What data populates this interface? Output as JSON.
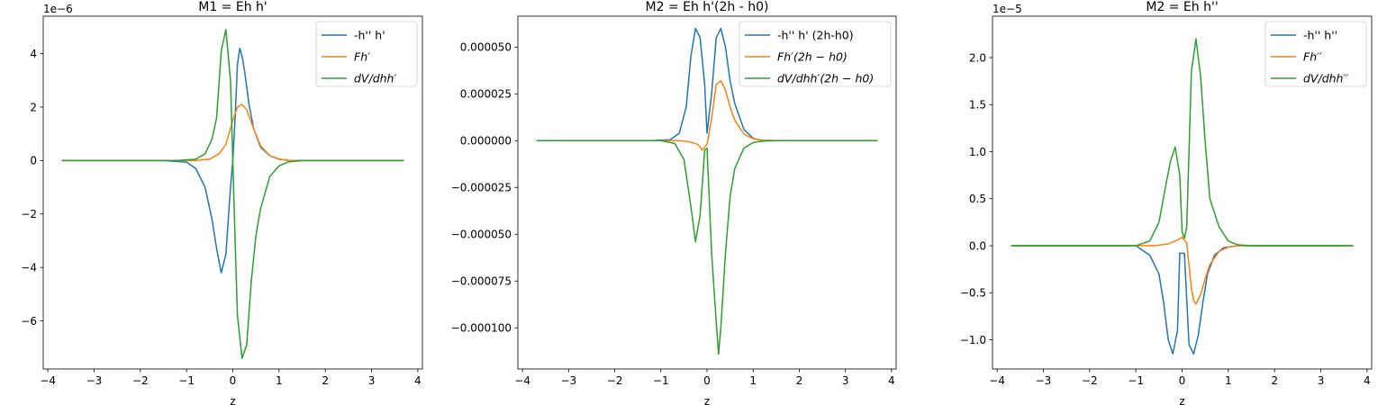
{
  "chart_data": [
    {
      "type": "line",
      "title": "M1 = Eh h'",
      "xlabel": "z",
      "ylabel": "",
      "scale_label": "1e−6",
      "xlim": [
        -4.1,
        4.1
      ],
      "ylim": [
        -7.8,
        5.4
      ],
      "xticks": [
        -4,
        -3,
        -2,
        -1,
        0,
        1,
        2,
        3,
        4
      ],
      "xtick_labels": [
        "−4",
        "−3",
        "−2",
        "−1",
        "0",
        "1",
        "2",
        "3",
        "4"
      ],
      "yticks": [
        -6,
        -4,
        -2,
        0,
        2,
        4
      ],
      "ytick_labels": [
        "−6",
        "−4",
        "−2",
        "0",
        "2",
        "4"
      ],
      "legend_position": "top-right",
      "series": [
        {
          "name": "-h'' h'",
          "italic": false,
          "color": "#1f77b4",
          "x": [
            -3.7,
            -1.5,
            -1.0,
            -0.8,
            -0.6,
            -0.45,
            -0.35,
            -0.25,
            -0.15,
            -0.05,
            0.0,
            0.05,
            0.1,
            0.15,
            0.2,
            0.25,
            0.35,
            0.45,
            0.6,
            0.8,
            1.0,
            1.2,
            1.5,
            3.7
          ],
          "y": [
            0,
            0,
            -0.06,
            -0.3,
            -1.0,
            -2.2,
            -3.3,
            -4.2,
            -3.5,
            -1.0,
            0.0,
            1.6,
            3.6,
            4.2,
            3.9,
            3.4,
            2.1,
            1.2,
            0.5,
            0.18,
            0.05,
            0.01,
            0,
            0
          ]
        },
        {
          "name": "Fh′",
          "italic": true,
          "color": "#ff7f0e",
          "x": [
            -3.7,
            -0.8,
            -0.5,
            -0.3,
            -0.15,
            0.0,
            0.1,
            0.2,
            0.3,
            0.45,
            0.6,
            0.8,
            1.0,
            1.2,
            1.5,
            3.7
          ],
          "y": [
            0,
            0,
            0.05,
            0.25,
            0.6,
            1.5,
            2.0,
            2.1,
            1.9,
            1.2,
            0.55,
            0.18,
            0.05,
            0.01,
            0,
            0
          ]
        },
        {
          "name": "dV/dhh′",
          "italic": true,
          "color": "#2ca02c",
          "x": [
            -3.7,
            -1.2,
            -0.8,
            -0.6,
            -0.45,
            -0.35,
            -0.25,
            -0.15,
            -0.05,
            0.0,
            0.05,
            0.1,
            0.2,
            0.3,
            0.4,
            0.5,
            0.6,
            0.8,
            1.0,
            1.2,
            1.5,
            3.7
          ],
          "y": [
            0,
            0,
            0.05,
            0.25,
            0.8,
            1.6,
            4.1,
            4.9,
            3.0,
            0.0,
            -3.0,
            -5.8,
            -7.4,
            -6.9,
            -4.5,
            -2.8,
            -1.8,
            -0.6,
            -0.2,
            -0.05,
            0,
            0
          ]
        }
      ]
    },
    {
      "type": "line",
      "title": "M2 = Eh h'(2h - h0)",
      "xlabel": "z",
      "ylabel": "",
      "scale_label": "",
      "xlim": [
        -4.1,
        4.1
      ],
      "ylim": [
        -0.000122,
        6.65e-05
      ],
      "xticks": [
        -4,
        -3,
        -2,
        -1,
        0,
        1,
        2,
        3,
        4
      ],
      "xtick_labels": [
        "−4",
        "−3",
        "−2",
        "−1",
        "0",
        "1",
        "2",
        "3",
        "4"
      ],
      "yticks": [
        -0.0001,
        -7.5e-05,
        -5e-05,
        -2.5e-05,
        0,
        2.5e-05,
        5e-05
      ],
      "ytick_labels": [
        "−0.000100",
        "−0.000075",
        "−0.000050",
        "−0.000025",
        "0.000000",
        "0.000025",
        "0.000050"
      ],
      "legend_position": "top-right",
      "series": [
        {
          "name": "-h'' h' (2h-h0)",
          "italic": false,
          "color": "#1f77b4",
          "x": [
            -3.7,
            -1.2,
            -0.8,
            -0.6,
            -0.45,
            -0.35,
            -0.25,
            -0.15,
            -0.05,
            0.0,
            0.1,
            0.2,
            0.3,
            0.4,
            0.5,
            0.6,
            0.8,
            1.0,
            1.2,
            1.5,
            3.7
          ],
          "y": [
            0,
            0,
            5e-07,
            4e-06,
            1.8e-05,
            4.5e-05,
            6e-05,
            5.5e-05,
            3e-05,
            4e-06,
            2.5e-05,
            5.5e-05,
            6e-05,
            5e-05,
            3.2e-05,
            2e-05,
            6e-06,
            1.2e-06,
            2e-07,
            0,
            0
          ]
        },
        {
          "name": "Fh′(2h − h0)",
          "italic": true,
          "color": "#ff7f0e",
          "x": [
            -3.7,
            -0.6,
            -0.4,
            -0.2,
            -0.1,
            0.0,
            0.1,
            0.2,
            0.3,
            0.4,
            0.5,
            0.6,
            0.8,
            1.0,
            1.2,
            1.5,
            3.7
          ],
          "y": [
            0,
            0,
            -5e-07,
            -2e-06,
            -5e-06,
            -2e-06,
            1.2e-05,
            3e-05,
            3.2e-05,
            2.7e-05,
            1.8e-05,
            1.1e-05,
            3.5e-06,
            1e-06,
            2e-07,
            0,
            0
          ]
        },
        {
          "name": "dV/dhh′(2h − h0)",
          "italic": true,
          "color": "#2ca02c",
          "x": [
            -3.7,
            -1.0,
            -0.7,
            -0.5,
            -0.35,
            -0.25,
            -0.15,
            -0.05,
            0.0,
            0.1,
            0.2,
            0.25,
            0.3,
            0.4,
            0.5,
            0.6,
            0.8,
            1.0,
            1.2,
            1.5,
            3.7
          ],
          "y": [
            0,
            0,
            -1.5e-06,
            -1e-05,
            -3.5e-05,
            -5.4e-05,
            -4e-05,
            -5e-06,
            -4e-06,
            -6e-05,
            -9.7e-05,
            -0.000114,
            -0.0001,
            -6e-05,
            -3e-05,
            -1.5e-05,
            -4e-06,
            -1e-06,
            -2e-07,
            0,
            0
          ]
        }
      ]
    },
    {
      "type": "line",
      "title": "M2 = Eh h''",
      "xlabel": "z",
      "ylabel": "",
      "scale_label": "1e−5",
      "xlim": [
        -4.1,
        4.1
      ],
      "ylim": [
        -1.31e-05,
        2.44e-05
      ],
      "xticks": [
        -4,
        -3,
        -2,
        -1,
        0,
        1,
        2,
        3,
        4
      ],
      "xtick_labels": [
        "−4",
        "−3",
        "−2",
        "−1",
        "0",
        "1",
        "2",
        "3",
        "4"
      ],
      "yticks": [
        -1e-05,
        -5e-06,
        0,
        5e-06,
        1e-05,
        1.5e-05,
        2e-05
      ],
      "ytick_labels": [
        "−1.0",
        "−0.5",
        "0.0",
        "0.5",
        "1.0",
        "1.5",
        "2.0"
      ],
      "legend_position": "top-right",
      "series": [
        {
          "name": "-h'' h''",
          "italic": false,
          "color": "#1f77b4",
          "x": [
            -3.7,
            -1.0,
            -0.7,
            -0.5,
            -0.4,
            -0.3,
            -0.2,
            -0.1,
            -0.05,
            0.05,
            0.15,
            0.25,
            0.35,
            0.45,
            0.55,
            0.7,
            0.9,
            1.2,
            1.5,
            3.7
          ],
          "y": [
            0,
            0,
            -1e-06,
            -3e-06,
            -6e-06,
            -1e-05,
            -1.15e-05,
            -9e-06,
            -8e-07,
            -8e-07,
            -1.05e-05,
            -1.15e-05,
            -9.5e-06,
            -6e-06,
            -3e-06,
            -1e-06,
            -2e-07,
            0,
            0,
            0
          ]
        },
        {
          "name": "Fh′′",
          "italic": true,
          "color": "#ff7f0e",
          "x": [
            -3.7,
            -0.6,
            -0.3,
            -0.1,
            0.0,
            0.1,
            0.2,
            0.25,
            0.3,
            0.4,
            0.5,
            0.6,
            0.8,
            1.0,
            1.2,
            1.5,
            3.7
          ],
          "y": [
            0,
            0,
            2e-07,
            6e-07,
            9e-07,
            3e-07,
            -4.5e-06,
            -5.8e-06,
            -6.2e-06,
            -5.2e-06,
            -3.5e-06,
            -2e-06,
            -6e-07,
            -1.5e-07,
            0,
            0,
            0
          ]
        },
        {
          "name": "dV/dhh′′",
          "italic": true,
          "color": "#2ca02c",
          "x": [
            -3.7,
            -1.0,
            -0.7,
            -0.5,
            -0.35,
            -0.25,
            -0.15,
            -0.05,
            0.0,
            0.05,
            0.1,
            0.15,
            0.2,
            0.3,
            0.4,
            0.5,
            0.6,
            0.8,
            1.0,
            1.2,
            1.5,
            3.7
          ],
          "y": [
            0,
            0,
            5e-07,
            2.5e-06,
            6.5e-06,
            9e-06,
            1.05e-05,
            7.5e-06,
            1.5e-06,
            8e-07,
            2e-06,
            1e-05,
            1.85e-05,
            2.2e-05,
            1.8e-05,
            1.1e-05,
            5e-06,
            2e-06,
            5e-07,
            1e-07,
            0,
            0
          ]
        }
      ]
    }
  ]
}
